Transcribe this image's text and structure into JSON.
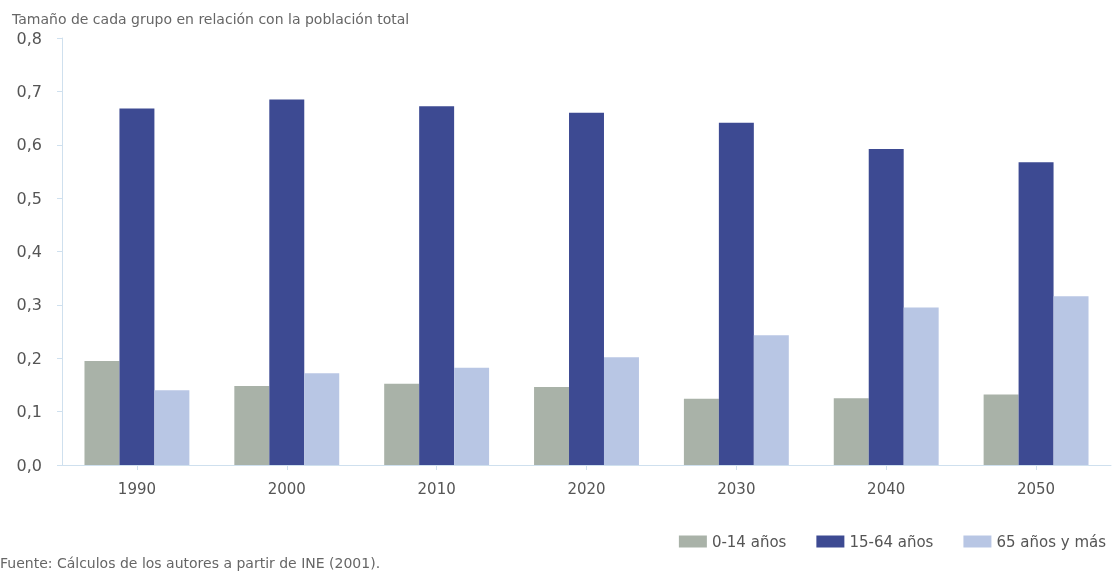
{
  "chart_data": {
    "type": "bar",
    "ylabel": "Tamaño de cada grupo en relación con la población total",
    "categories": [
      "1990",
      "2000",
      "2010",
      "2020",
      "2030",
      "2040",
      "2050"
    ],
    "series": [
      {
        "name": "0-14 años",
        "color": "#a9b2a8",
        "values": [
          0.195,
          0.148,
          0.152,
          0.146,
          0.124,
          0.125,
          0.132
        ]
      },
      {
        "name": "15-64 años",
        "color": "#3d4a92",
        "values": [
          0.668,
          0.685,
          0.672,
          0.66,
          0.641,
          0.592,
          0.567
        ]
      },
      {
        "name": "65 años y más",
        "color": "#b8c6e4",
        "values": [
          0.14,
          0.172,
          0.182,
          0.202,
          0.243,
          0.295,
          0.316
        ]
      }
    ],
    "ylim": [
      0,
      0.8
    ],
    "yticks": [
      {
        "value": 0,
        "label": "0,0"
      },
      {
        "value": 0.1,
        "label": "0,1"
      },
      {
        "value": 0.2,
        "label": "0,2"
      },
      {
        "value": 0.3,
        "label": "0,3"
      },
      {
        "value": 0.4,
        "label": "0,4"
      },
      {
        "value": 0.5,
        "label": "0,5"
      },
      {
        "value": 0.6,
        "label": "0,6"
      },
      {
        "value": 0.7,
        "label": "0,7"
      },
      {
        "value": 0.8,
        "label": "0,8"
      }
    ],
    "grid": false,
    "legend": "bottom right",
    "annotations": [
      "Fuente: Cálculos de los autores a partir de INE (2001)."
    ]
  }
}
